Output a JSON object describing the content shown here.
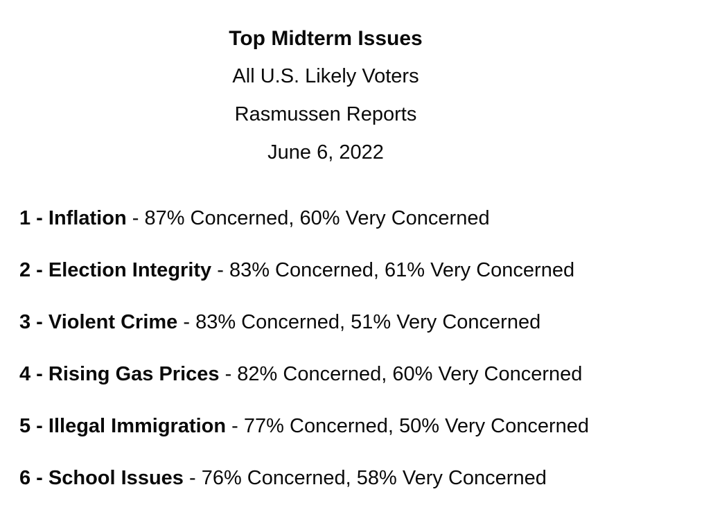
{
  "header": {
    "title": "Top Midterm Issues",
    "audience": "All U.S. Likely Voters",
    "source": "Rasmussen Reports",
    "date": "June 6, 2022"
  },
  "list": {
    "items": [
      {
        "rank": 1,
        "issue": "Inflation",
        "concerned_pct": 87,
        "very_concerned_pct": 60,
        "bold": "1 - Inflation",
        "rest": " - 87% Concerned, 60% Very Concerned"
      },
      {
        "rank": 2,
        "issue": "Election Integrity",
        "concerned_pct": 83,
        "very_concerned_pct": 61,
        "bold": "2 - Election Integrity",
        "rest": " - 83% Concerned, 61% Very Concerned"
      },
      {
        "rank": 3,
        "issue": "Violent Crime",
        "concerned_pct": 83,
        "very_concerned_pct": 51,
        "bold": "3 - Violent Crime",
        "rest": " - 83% Concerned, 51% Very Concerned"
      },
      {
        "rank": 4,
        "issue": "Rising Gas Prices",
        "concerned_pct": 82,
        "very_concerned_pct": 60,
        "bold": "4 - Rising Gas Prices",
        "rest": " - 82% Concerned, 60% Very Concerned"
      },
      {
        "rank": 5,
        "issue": "Illegal Immigration",
        "concerned_pct": 77,
        "very_concerned_pct": 50,
        "bold": "5 - Illegal Immigration",
        "rest": " - 77% Concerned, 50% Very Concerned"
      },
      {
        "rank": 6,
        "issue": "School Issues",
        "concerned_pct": 76,
        "very_concerned_pct": 58,
        "bold": "6 - School Issues",
        "rest": " - 76% Concerned, 58% Very Concerned"
      }
    ]
  }
}
